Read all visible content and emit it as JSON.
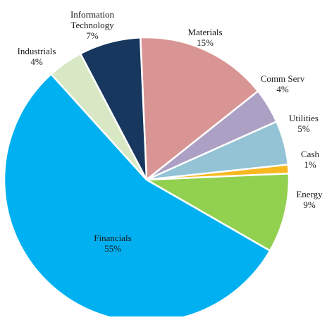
{
  "chart_data": {
    "type": "pie",
    "title": "",
    "start_angle_deg": -2.5,
    "direction": "clockwise",
    "slices": [
      {
        "name": "Materials",
        "value_label": "15%",
        "value": 15,
        "color": "#D99594"
      },
      {
        "name": "Comm  Serv",
        "value_label": "4%",
        "value": 4,
        "color": "#ACA0C4"
      },
      {
        "name": "Utilities",
        "value_label": "5%",
        "value": 5,
        "color": "#93C3D5"
      },
      {
        "name": "Cash",
        "value_label": "1%",
        "value": 1,
        "color": "#F8B820"
      },
      {
        "name": "Energy",
        "value_label": "9%",
        "value": 9,
        "color": "#92D050"
      },
      {
        "name": "Financials",
        "value_label": "55%",
        "value": 55,
        "color": "#00B0F0"
      },
      {
        "name": "Industrials",
        "value_label": "4%",
        "value": 4,
        "color": "#D9E8C4"
      },
      {
        "name": "Information\nTechnology",
        "value_label": "7%",
        "value": 7,
        "color": "#17375E"
      }
    ]
  }
}
